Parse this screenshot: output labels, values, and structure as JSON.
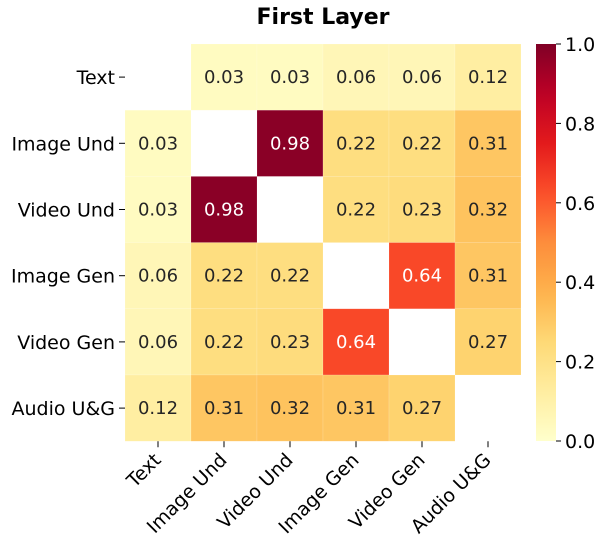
{
  "chart_data": {
    "type": "heatmap",
    "title": "First Layer",
    "row_labels": [
      "Text",
      "Image Und",
      "Video Und",
      "Image Gen",
      "Video Gen",
      "Audio U&G"
    ],
    "col_labels": [
      "Text",
      "Image Und",
      "Video Und",
      "Image Gen",
      "Video Gen",
      "Audio U&G"
    ],
    "values": [
      [
        null,
        0.03,
        0.03,
        0.06,
        0.06,
        0.12
      ],
      [
        0.03,
        null,
        0.98,
        0.22,
        0.22,
        0.31
      ],
      [
        0.03,
        0.98,
        null,
        0.22,
        0.23,
        0.32
      ],
      [
        0.06,
        0.22,
        0.22,
        null,
        0.64,
        0.31
      ],
      [
        0.06,
        0.22,
        0.23,
        0.64,
        null,
        0.27
      ],
      [
        0.12,
        0.31,
        0.32,
        0.31,
        0.27,
        null
      ]
    ],
    "value_labels": [
      [
        "",
        "0.03",
        "0.03",
        "0.06",
        "0.06",
        "0.12"
      ],
      [
        "0.03",
        "",
        "0.98",
        "0.22",
        "0.22",
        "0.31"
      ],
      [
        "0.03",
        "0.98",
        "",
        "0.22",
        "0.23",
        "0.32"
      ],
      [
        "0.06",
        "0.22",
        "0.22",
        "",
        "0.64",
        "0.31"
      ],
      [
        "0.06",
        "0.22",
        "0.23",
        "0.64",
        "",
        "0.27"
      ],
      [
        "0.12",
        "0.31",
        "0.32",
        "0.31",
        "0.27",
        ""
      ]
    ],
    "colorscale": "YlOrRd",
    "vmin": 0.0,
    "vmax": 1.0,
    "colorbar_ticks": [
      0.0,
      0.2,
      0.4,
      0.6,
      0.8,
      1.0
    ],
    "colorbar_tick_labels": [
      "0.0",
      "0.2",
      "0.4",
      "0.6",
      "0.8",
      "1.0"
    ],
    "colorbar_position": "right"
  }
}
